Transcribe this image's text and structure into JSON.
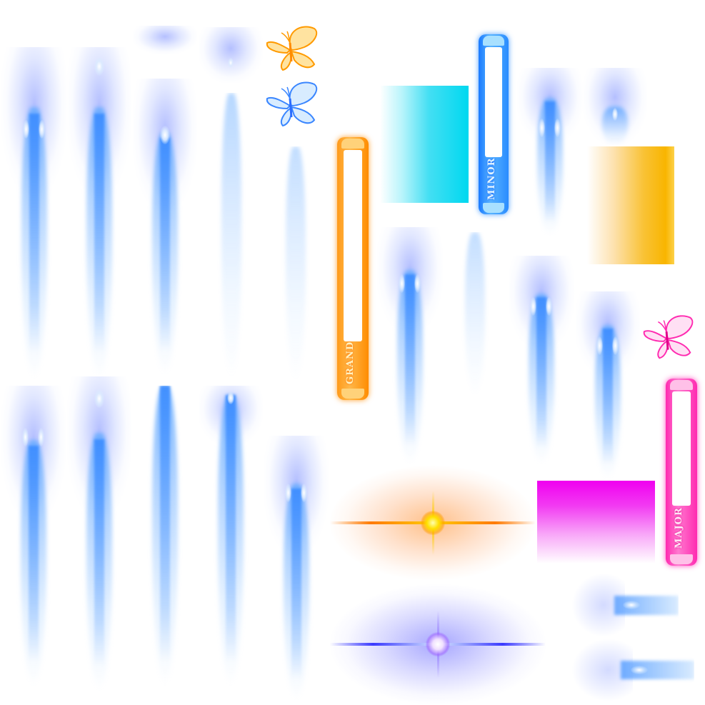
{
  "sheet": {
    "background": "#ffffff",
    "colors": {
      "wisp_blue": "#6fa8ff",
      "cyan_swatch_from": "#ffffff",
      "cyan_swatch_to": "#00d8f0",
      "orange_swatch_to": "#f9b500",
      "magenta_swatch_to": "#f000f0",
      "grand_bar": "#ff8c00",
      "minor_bar": "#2a8cff",
      "major_bar": "#ff2ab0",
      "orange_flare": "#ff7a00",
      "blue_flare": "#3a3aff"
    }
  },
  "bars": {
    "grand": {
      "label": "GRAND",
      "color": "#ff8c00"
    },
    "minor": {
      "label": "MINOR",
      "color": "#2a8cff"
    },
    "major": {
      "label": "MAJOR",
      "color": "#ff2ab0"
    }
  },
  "icons": {
    "butterfly_orange": "butterfly-icon",
    "butterfly_blue": "butterfly-icon",
    "butterfly_pink": "butterfly-icon"
  }
}
